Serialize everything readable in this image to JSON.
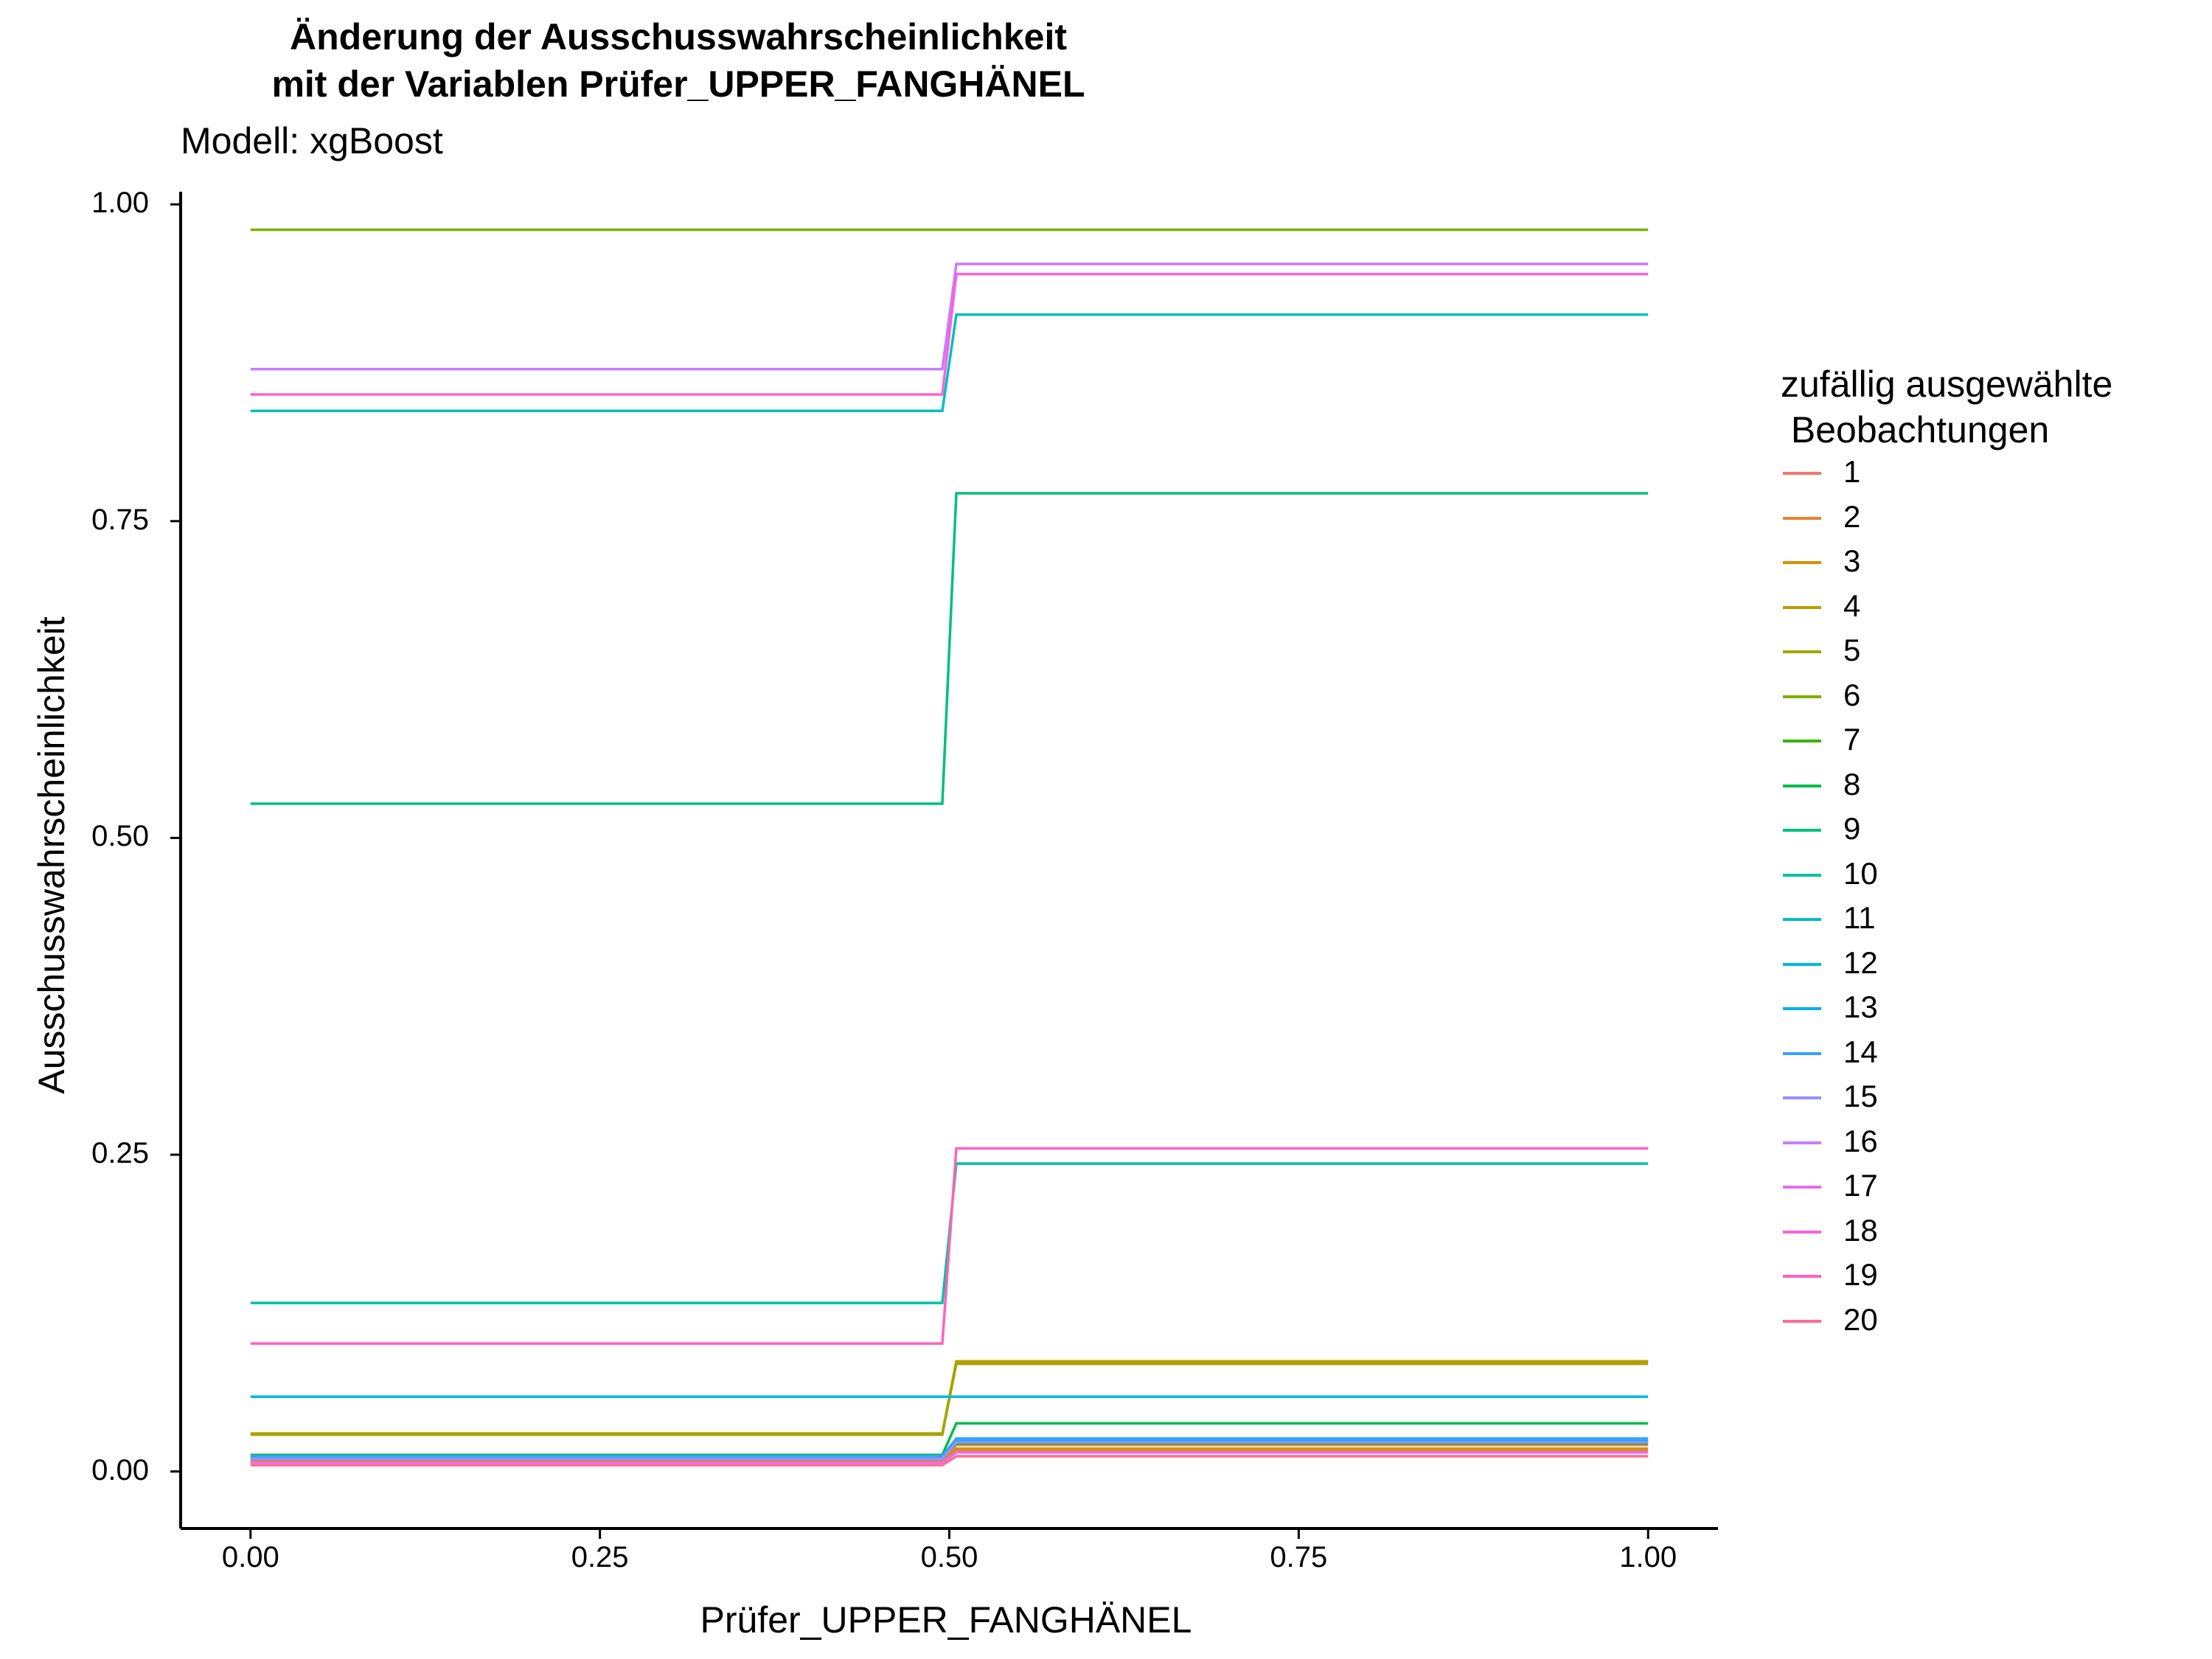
{
  "chart_data": {
    "type": "line",
    "title_line1": "Änderung der Ausschusswahrscheinlichkeit",
    "title_line2": "mit der Variablen Prüfer_UPPER_FANGHÄNEL",
    "subtitle": "Modell: xgBoost",
    "xlabel": "Prüfer_UPPER_FANGHÄNEL",
    "ylabel": "Ausschusswahrscheinlichkeit",
    "xlim": [
      -0.05,
      1.05
    ],
    "ylim": [
      -0.045,
      1.01
    ],
    "x_ticks": [
      "0.00",
      "0.25",
      "0.50",
      "0.75",
      "1.00"
    ],
    "y_ticks": [
      "0.00",
      "0.25",
      "0.50",
      "0.75",
      "1.00"
    ],
    "grid": false,
    "legend_title": "zufällig ausgewählte\n Beobachtungen",
    "legend_position": "right",
    "x": [
      0,
      0.495,
      0.505,
      1
    ],
    "series": [
      {
        "name": "1",
        "color": "#F8766D",
        "values": [
          0.01,
          0.01,
          0.021,
          0.021
        ]
      },
      {
        "name": "2",
        "color": "#EA8331",
        "values": [
          0.008,
          0.008,
          0.016,
          0.016
        ]
      },
      {
        "name": "3",
        "color": "#D89000",
        "values": [
          0.009,
          0.009,
          0.018,
          0.018
        ]
      },
      {
        "name": "4",
        "color": "#C09B00",
        "values": [
          0.03,
          0.03,
          0.087,
          0.087
        ]
      },
      {
        "name": "5",
        "color": "#A3A500",
        "values": [
          0.029,
          0.029,
          0.085,
          0.085
        ]
      },
      {
        "name": "6",
        "color": "#7CAE00",
        "values": [
          0.98,
          0.98,
          0.98,
          0.98
        ]
      },
      {
        "name": "7",
        "color": "#39B600",
        "values": [
          0.011,
          0.011,
          0.022,
          0.022
        ]
      },
      {
        "name": "8",
        "color": "#00BB4E",
        "values": [
          0.013,
          0.013,
          0.038,
          0.038
        ]
      },
      {
        "name": "9",
        "color": "#00BF7D",
        "values": [
          0.527,
          0.527,
          0.772,
          0.772
        ]
      },
      {
        "name": "10",
        "color": "#00C1A3",
        "values": [
          0.133,
          0.133,
          0.243,
          0.243
        ]
      },
      {
        "name": "11",
        "color": "#00BFC4",
        "values": [
          0.837,
          0.837,
          0.913,
          0.913
        ]
      },
      {
        "name": "12",
        "color": "#00BAE0",
        "values": [
          0.059,
          0.059,
          0.059,
          0.059
        ]
      },
      {
        "name": "13",
        "color": "#00B0F6",
        "values": [
          0.011,
          0.011,
          0.024,
          0.024
        ]
      },
      {
        "name": "14",
        "color": "#35A2FF",
        "values": [
          0.012,
          0.012,
          0.026,
          0.026
        ]
      },
      {
        "name": "15",
        "color": "#9590FF",
        "values": [
          0.01,
          0.01,
          0.023,
          0.023
        ]
      },
      {
        "name": "16",
        "color": "#C77CFF",
        "values": [
          0.87,
          0.87,
          0.953,
          0.953
        ]
      },
      {
        "name": "17",
        "color": "#E76BF3",
        "values": [
          0.007,
          0.007,
          0.015,
          0.015
        ]
      },
      {
        "name": "18",
        "color": "#FA62DB",
        "values": [
          0.85,
          0.85,
          0.945,
          0.945
        ]
      },
      {
        "name": "19",
        "color": "#FF62BC",
        "values": [
          0.101,
          0.101,
          0.255,
          0.255
        ]
      },
      {
        "name": "20",
        "color": "#FF6C91",
        "values": [
          0.005,
          0.005,
          0.012,
          0.012
        ]
      }
    ]
  }
}
